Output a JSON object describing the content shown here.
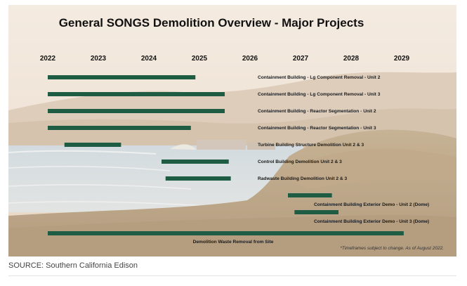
{
  "chart_data": {
    "type": "gantt",
    "title": "General SONGS Demolition Overview - Major Projects",
    "years": [
      "2022",
      "2023",
      "2024",
      "2025",
      "2026",
      "2027",
      "2028",
      "2029"
    ],
    "tasks": [
      {
        "label": "Containment Building - Lg Component Removal - Unit 2",
        "start": 2022.0,
        "end": 2024.92
      },
      {
        "label": "Containment Building - Lg Component Removal - Unit 3",
        "start": 2022.0,
        "end": 2025.5
      },
      {
        "label": "Containment Building - Reactor Segmentation - Unit 2",
        "start": 2022.0,
        "end": 2025.5
      },
      {
        "label": "Containment Building - Reactor Segmentation - Unit 3",
        "start": 2022.0,
        "end": 2024.83
      },
      {
        "label": "Turbine Building Structure Demolition Unit 2 & 3",
        "start": 2022.33,
        "end": 2023.45
      },
      {
        "label": "Control Building Demolition Unit 2 & 3",
        "start": 2024.25,
        "end": 2025.58
      },
      {
        "label": "Radwaste Building Demolition Unit 2 & 3",
        "start": 2024.33,
        "end": 2025.62
      },
      {
        "label": "Containment Building Exterior Demo - Unit 2 (Dome)",
        "start": 2026.75,
        "end": 2027.62
      },
      {
        "label": "Containment Building Exterior Demo - Unit 3 (Dome)",
        "start": 2026.88,
        "end": 2027.75
      },
      {
        "label": "Demolition Waste Removal from Site",
        "start": 2022.0,
        "end": 2029.04
      }
    ],
    "note": "*Timeframes subject to change. As of August 2022.",
    "bar_color": "#1f5c44"
  },
  "source": "SOURCE: Southern California Edison"
}
